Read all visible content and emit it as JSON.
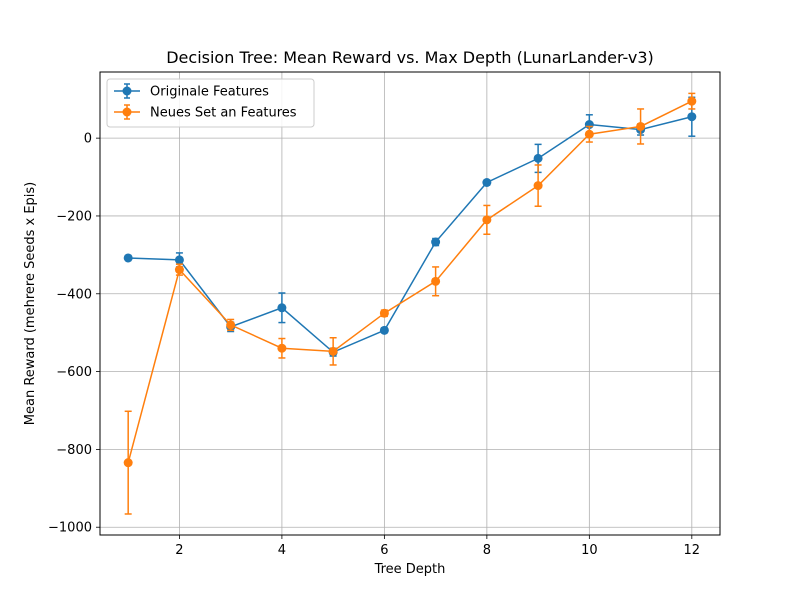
{
  "chart_data": {
    "type": "line",
    "title": "Decision Tree: Mean Reward vs. Max Depth (LunarLander-v3)",
    "xlabel": "Tree Depth",
    "ylabel": "Mean Reward (mehrere Seeds x Epis)",
    "xlim": [
      0.45,
      12.55
    ],
    "ylim": [
      -1020,
      170
    ],
    "xticks": [
      2,
      4,
      6,
      8,
      10,
      12
    ],
    "yticks": [
      -1000,
      -800,
      -600,
      -400,
      -200,
      0
    ],
    "x_tick_labels": [
      "2",
      "4",
      "6",
      "8",
      "10",
      "12"
    ],
    "y_tick_labels": [
      "−1000",
      "−800",
      "−600",
      "−400",
      "−200",
      "0"
    ],
    "grid": true,
    "legend_position": "upper-left",
    "error_bars": true,
    "series": [
      {
        "name": "Originale Features",
        "color": "#1f77b4",
        "marker": "circle",
        "x": [
          1,
          2,
          3,
          4,
          5,
          6,
          7,
          8,
          9,
          10,
          11,
          12
        ],
        "y": [
          -308,
          -313,
          -485,
          -436,
          -550,
          -494,
          -267,
          -114,
          -52,
          35,
          22,
          55
        ],
        "yerr": [
          4,
          18,
          12,
          38,
          10,
          6,
          9,
          6,
          36,
          25,
          14,
          50
        ]
      },
      {
        "name": "Neues Set an Features",
        "color": "#ff7f0e",
        "marker": "circle",
        "x": [
          1,
          2,
          3,
          4,
          5,
          6,
          7,
          8,
          9,
          10,
          11,
          12
        ],
        "y": [
          -834,
          -338,
          -480,
          -540,
          -548,
          -450,
          -368,
          -210,
          -122,
          10,
          30,
          95
        ],
        "yerr": [
          132,
          14,
          14,
          25,
          35,
          8,
          37,
          37,
          53,
          20,
          45,
          20
        ]
      }
    ]
  }
}
